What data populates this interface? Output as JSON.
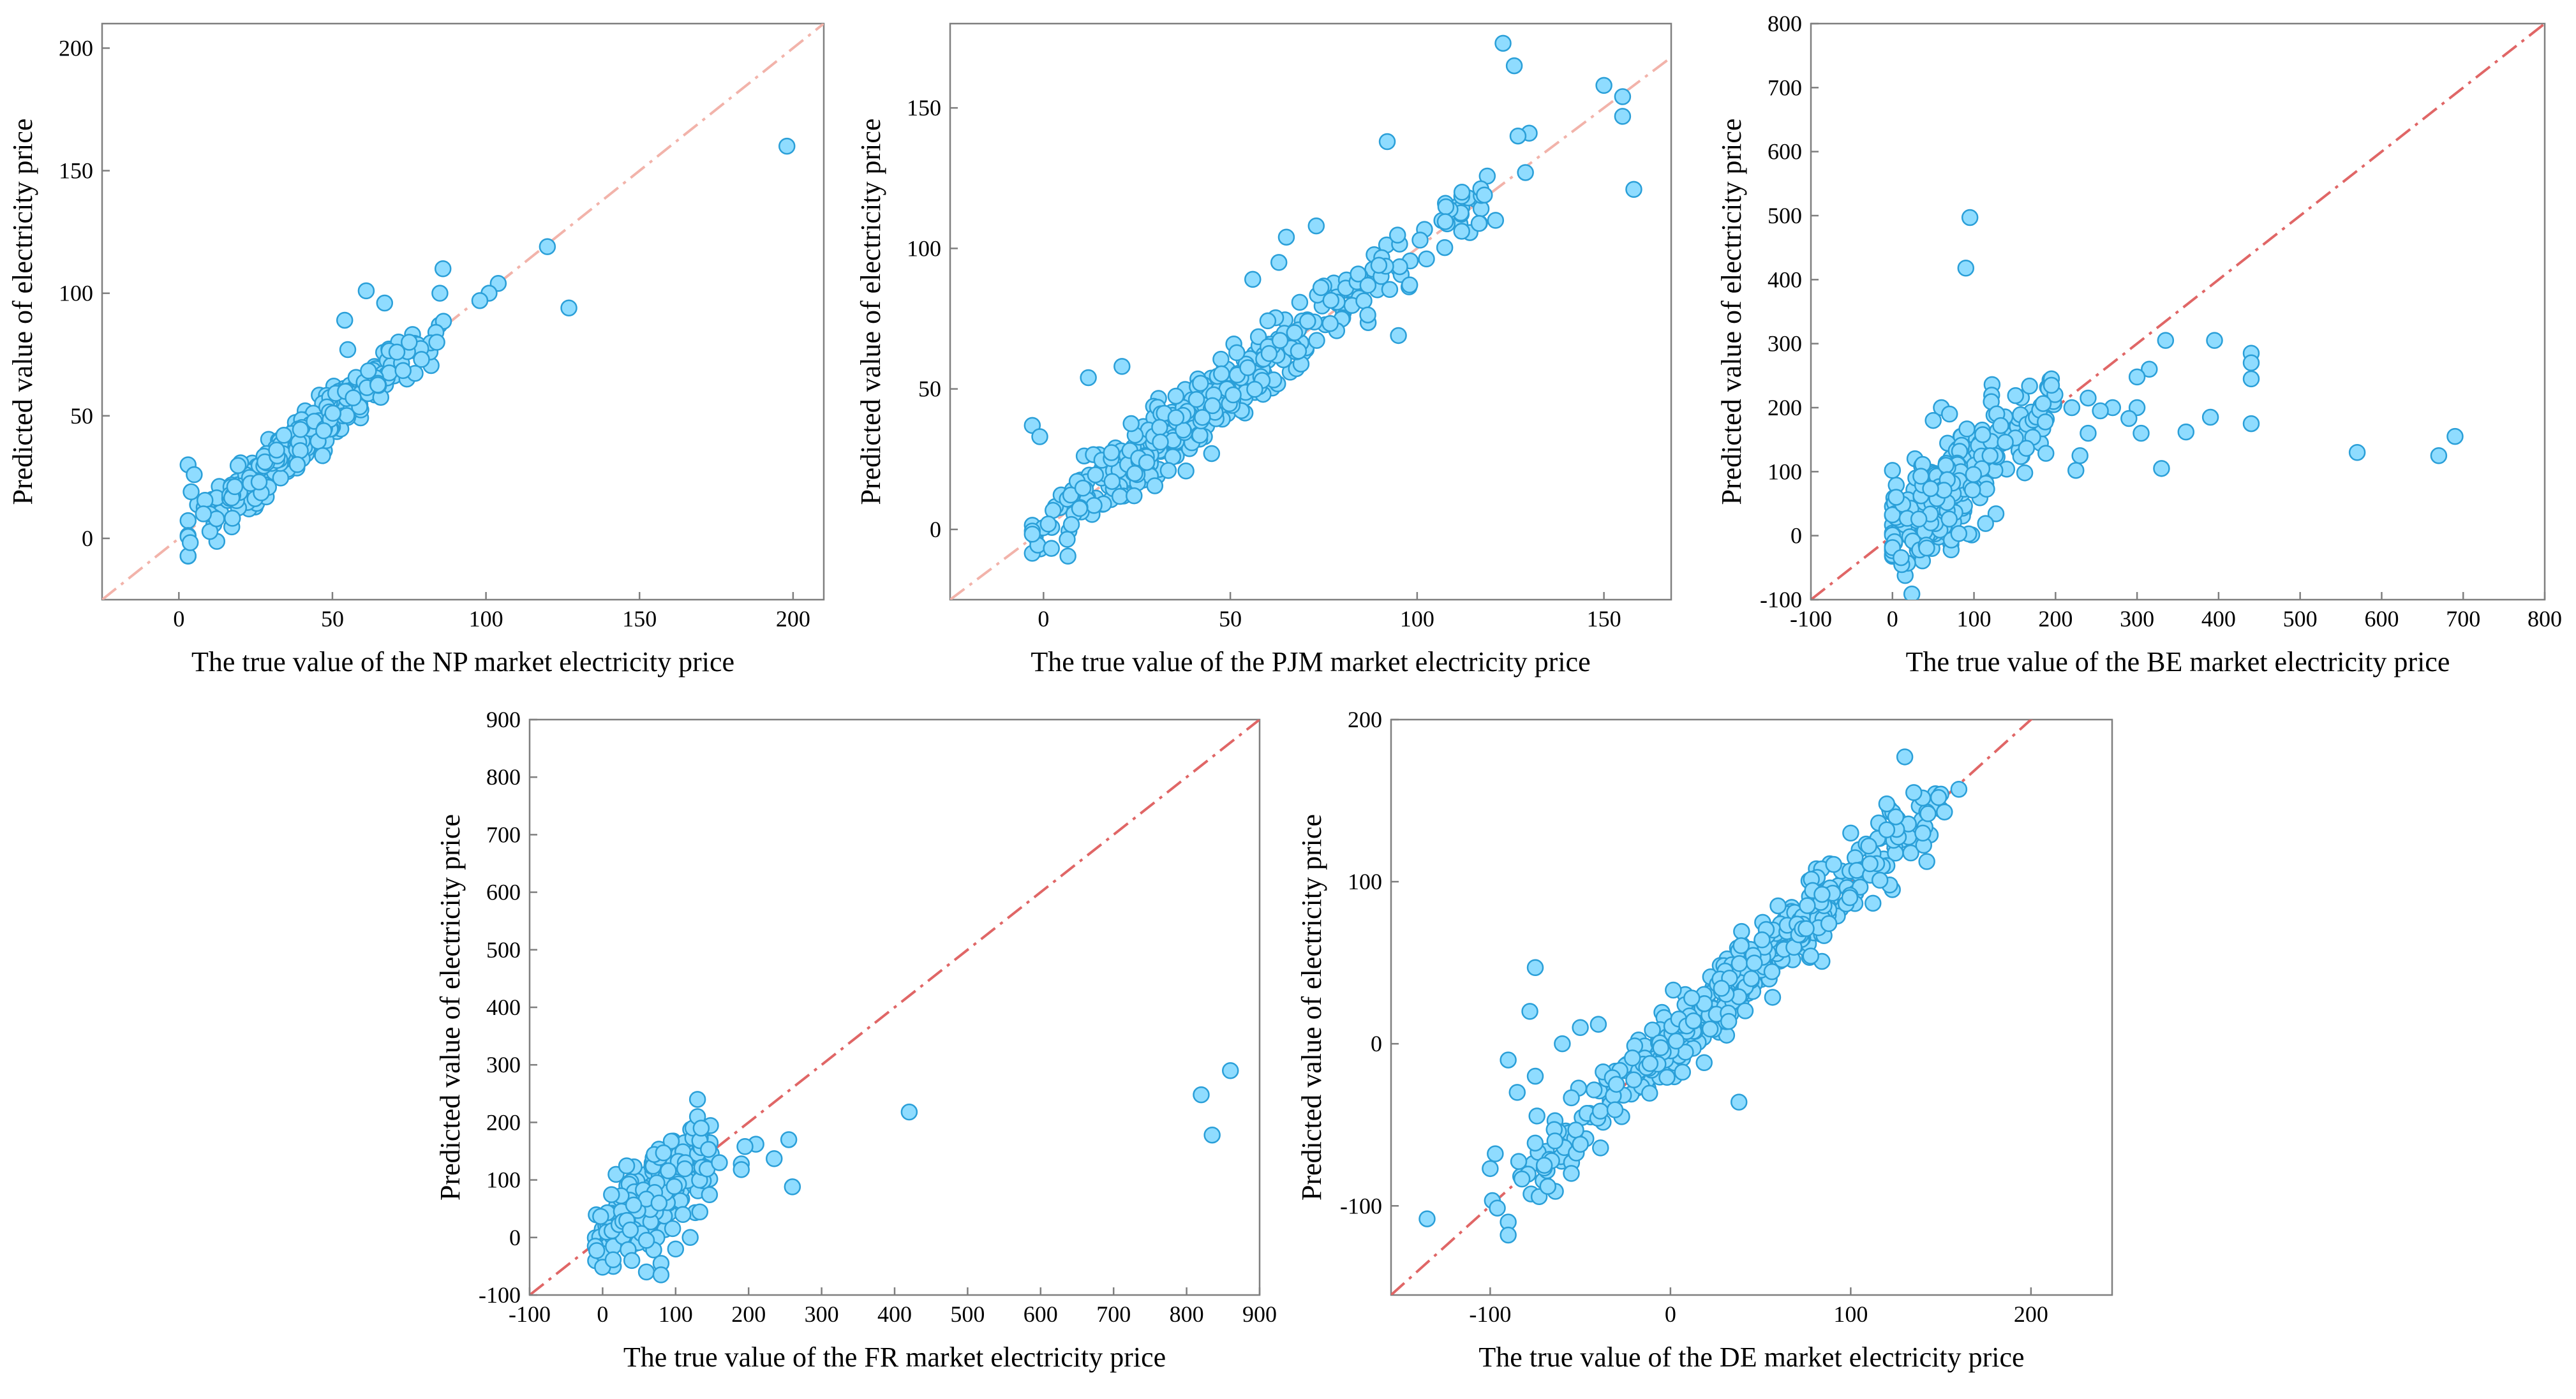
{
  "page": {
    "figure": "Scatter plots of predicted versus true electricity prices for five markets"
  },
  "chart_data": [
    {
      "type": "scatter",
      "market": "NP",
      "xlabel": "The true value of the NP market electricity price",
      "ylabel": "Predicted value of electricity price",
      "xlim": [
        -25,
        210
      ],
      "ylim": [
        -25,
        210
      ],
      "xticks": [
        0,
        50,
        100,
        150,
        200
      ],
      "yticks": [
        0,
        50,
        100,
        150,
        200
      ],
      "reference_line": "y = x",
      "colors": {
        "point_fill": "#8fdcff",
        "point_edge": "#2a9fd8",
        "reference": "#f2b3aa"
      },
      "cluster": {
        "center": [
          40,
          40
        ],
        "x_range": [
          3,
          88
        ],
        "spread": 5,
        "count": 360
      },
      "points": [
        [
          3,
          30
        ],
        [
          5,
          26
        ],
        [
          4,
          19
        ],
        [
          8,
          10
        ],
        [
          198,
          160
        ],
        [
          127,
          94
        ],
        [
          120,
          119
        ],
        [
          104,
          104
        ],
        [
          101,
          100
        ],
        [
          98,
          97
        ],
        [
          86,
          110
        ],
        [
          85,
          100
        ],
        [
          61,
          101
        ],
        [
          54,
          89
        ],
        [
          55,
          77
        ],
        [
          67,
          96
        ],
        [
          84,
          80
        ],
        [
          79,
          73
        ],
        [
          75,
          80
        ],
        [
          71,
          76
        ]
      ]
    },
    {
      "type": "scatter",
      "market": "PJM",
      "xlabel": "The true value of the PJM market electricity price",
      "ylabel": "Predicted value of electricity price",
      "xlim": [
        -25,
        168
      ],
      "ylim": [
        -25,
        180
      ],
      "xticks": [
        0,
        50,
        100,
        150
      ],
      "yticks": [
        0,
        50,
        100,
        150
      ],
      "reference_line": "y = x",
      "colors": {
        "point_fill": "#8fdcff",
        "point_edge": "#2a9fd8",
        "reference": "#f2b3aa"
      },
      "cluster": {
        "center": [
          40,
          40
        ],
        "x_range": [
          -3,
          120
        ],
        "spread": 6,
        "count": 420
      },
      "points": [
        [
          -3,
          37
        ],
        [
          -1,
          33
        ],
        [
          12,
          54
        ],
        [
          21,
          58
        ],
        [
          123,
          173
        ],
        [
          126,
          165
        ],
        [
          150,
          158
        ],
        [
          155,
          154
        ],
        [
          155,
          147
        ],
        [
          158,
          121
        ],
        [
          130,
          141
        ],
        [
          127,
          140
        ],
        [
          129,
          127
        ],
        [
          92,
          138
        ],
        [
          95,
          69
        ],
        [
          98,
          87
        ],
        [
          112,
          120
        ],
        [
          118,
          119
        ],
        [
          121,
          110
        ],
        [
          42,
          52
        ],
        [
          45,
          27
        ],
        [
          56,
          89
        ],
        [
          63,
          95
        ],
        [
          65,
          104
        ],
        [
          73,
          108
        ]
      ]
    },
    {
      "type": "scatter",
      "market": "BE",
      "xlabel": "The true value of the BE market electricity price",
      "ylabel": "Predicted value of electricity price",
      "xlim": [
        -100,
        800
      ],
      "ylim": [
        -100,
        800
      ],
      "xticks": [
        -100,
        0,
        100,
        200,
        300,
        400,
        500,
        600,
        700,
        800
      ],
      "yticks": [
        -100,
        0,
        100,
        200,
        300,
        400,
        500,
        600,
        700,
        800
      ],
      "reference_line": "y = x",
      "colors": {
        "point_fill": "#8fdcff",
        "point_edge": "#2a9fd8",
        "reference": "#e06666"
      },
      "cluster": {
        "center": [
          60,
          70
        ],
        "x_range": [
          0,
          200
        ],
        "spread": 40,
        "count": 320
      },
      "points": [
        [
          95,
          497
        ],
        [
          90,
          418
        ],
        [
          395,
          305
        ],
        [
          335,
          305
        ],
        [
          440,
          285
        ],
        [
          440,
          270
        ],
        [
          440,
          245
        ],
        [
          440,
          175
        ],
        [
          390,
          185
        ],
        [
          360,
          162
        ],
        [
          330,
          105
        ],
        [
          315,
          260
        ],
        [
          300,
          248
        ],
        [
          300,
          200
        ],
        [
          290,
          183
        ],
        [
          305,
          160
        ],
        [
          270,
          200
        ],
        [
          255,
          195
        ],
        [
          240,
          215
        ],
        [
          220,
          200
        ],
        [
          195,
          245
        ],
        [
          195,
          235
        ],
        [
          240,
          160
        ],
        [
          230,
          125
        ],
        [
          225,
          102
        ],
        [
          570,
          130
        ],
        [
          670,
          125
        ],
        [
          690,
          155
        ],
        [
          60,
          200
        ],
        [
          70,
          190
        ],
        [
          50,
          180
        ]
      ]
    },
    {
      "type": "scatter",
      "market": "FR",
      "xlabel": "The true value of the FR market electricity price",
      "ylabel": "Predicted value of electricity price",
      "xlim": [
        -100,
        900
      ],
      "ylim": [
        -100,
        900
      ],
      "xticks": [
        -100,
        0,
        100,
        200,
        300,
        400,
        500,
        600,
        700,
        800,
        900
      ],
      "yticks": [
        -100,
        0,
        100,
        200,
        300,
        400,
        500,
        600,
        700,
        800,
        900
      ],
      "reference_line": "y = x",
      "colors": {
        "point_fill": "#8fdcff",
        "point_edge": "#2a9fd8",
        "reference": "#e06666"
      },
      "cluster": {
        "center": [
          60,
          60
        ],
        "x_range": [
          -10,
          150
        ],
        "spread": 35,
        "count": 300
      },
      "points": [
        [
          420,
          218
        ],
        [
          820,
          248
        ],
        [
          835,
          178
        ],
        [
          860,
          290
        ],
        [
          255,
          170
        ],
        [
          260,
          88
        ],
        [
          235,
          137
        ],
        [
          210,
          162
        ],
        [
          195,
          158
        ],
        [
          190,
          128
        ],
        [
          190,
          118
        ],
        [
          130,
          240
        ],
        [
          130,
          210
        ],
        [
          135,
          190
        ],
        [
          145,
          153
        ],
        [
          160,
          130
        ],
        [
          40,
          -40
        ],
        [
          60,
          -60
        ],
        [
          80,
          -45
        ],
        [
          80,
          -65
        ],
        [
          100,
          -20
        ],
        [
          60,
          -5
        ],
        [
          110,
          40
        ],
        [
          120,
          0
        ]
      ]
    },
    {
      "type": "scatter",
      "market": "DE",
      "xlabel": "The true value of the DE market electricity price",
      "ylabel": "Predicted value of electricity price",
      "xlim": [
        -155,
        245
      ],
      "ylim": [
        -155,
        200
      ],
      "xticks": [
        -100,
        0,
        100,
        200
      ],
      "yticks": [
        -100,
        0,
        100,
        200
      ],
      "reference_line": "y = x",
      "colors": {
        "point_fill": "#8fdcff",
        "point_edge": "#2a9fd8",
        "reference": "#e06666"
      },
      "cluster": {
        "center": [
          40,
          40
        ],
        "x_range": [
          -100,
          150
        ],
        "spread": 12,
        "count": 480
      },
      "points": [
        [
          -135,
          -108
        ],
        [
          -90,
          -110
        ],
        [
          -90,
          -118
        ],
        [
          -100,
          -77
        ],
        [
          -75,
          47
        ],
        [
          -78,
          20
        ],
        [
          -70,
          -75
        ],
        [
          -68,
          -88
        ],
        [
          -55,
          -80
        ],
        [
          -50,
          -62
        ],
        [
          -90,
          -10
        ],
        [
          -85,
          -30
        ],
        [
          -75,
          -20
        ],
        [
          -60,
          0
        ],
        [
          -50,
          10
        ],
        [
          -40,
          12
        ],
        [
          -30,
          -25
        ],
        [
          38,
          -36
        ],
        [
          130,
          177
        ],
        [
          160,
          157
        ],
        [
          152,
          143
        ],
        [
          140,
          130
        ],
        [
          135,
          155
        ],
        [
          120,
          148
        ],
        [
          125,
          140
        ],
        [
          100,
          130
        ],
        [
          120,
          132
        ],
        [
          110,
          122
        ]
      ]
    }
  ]
}
